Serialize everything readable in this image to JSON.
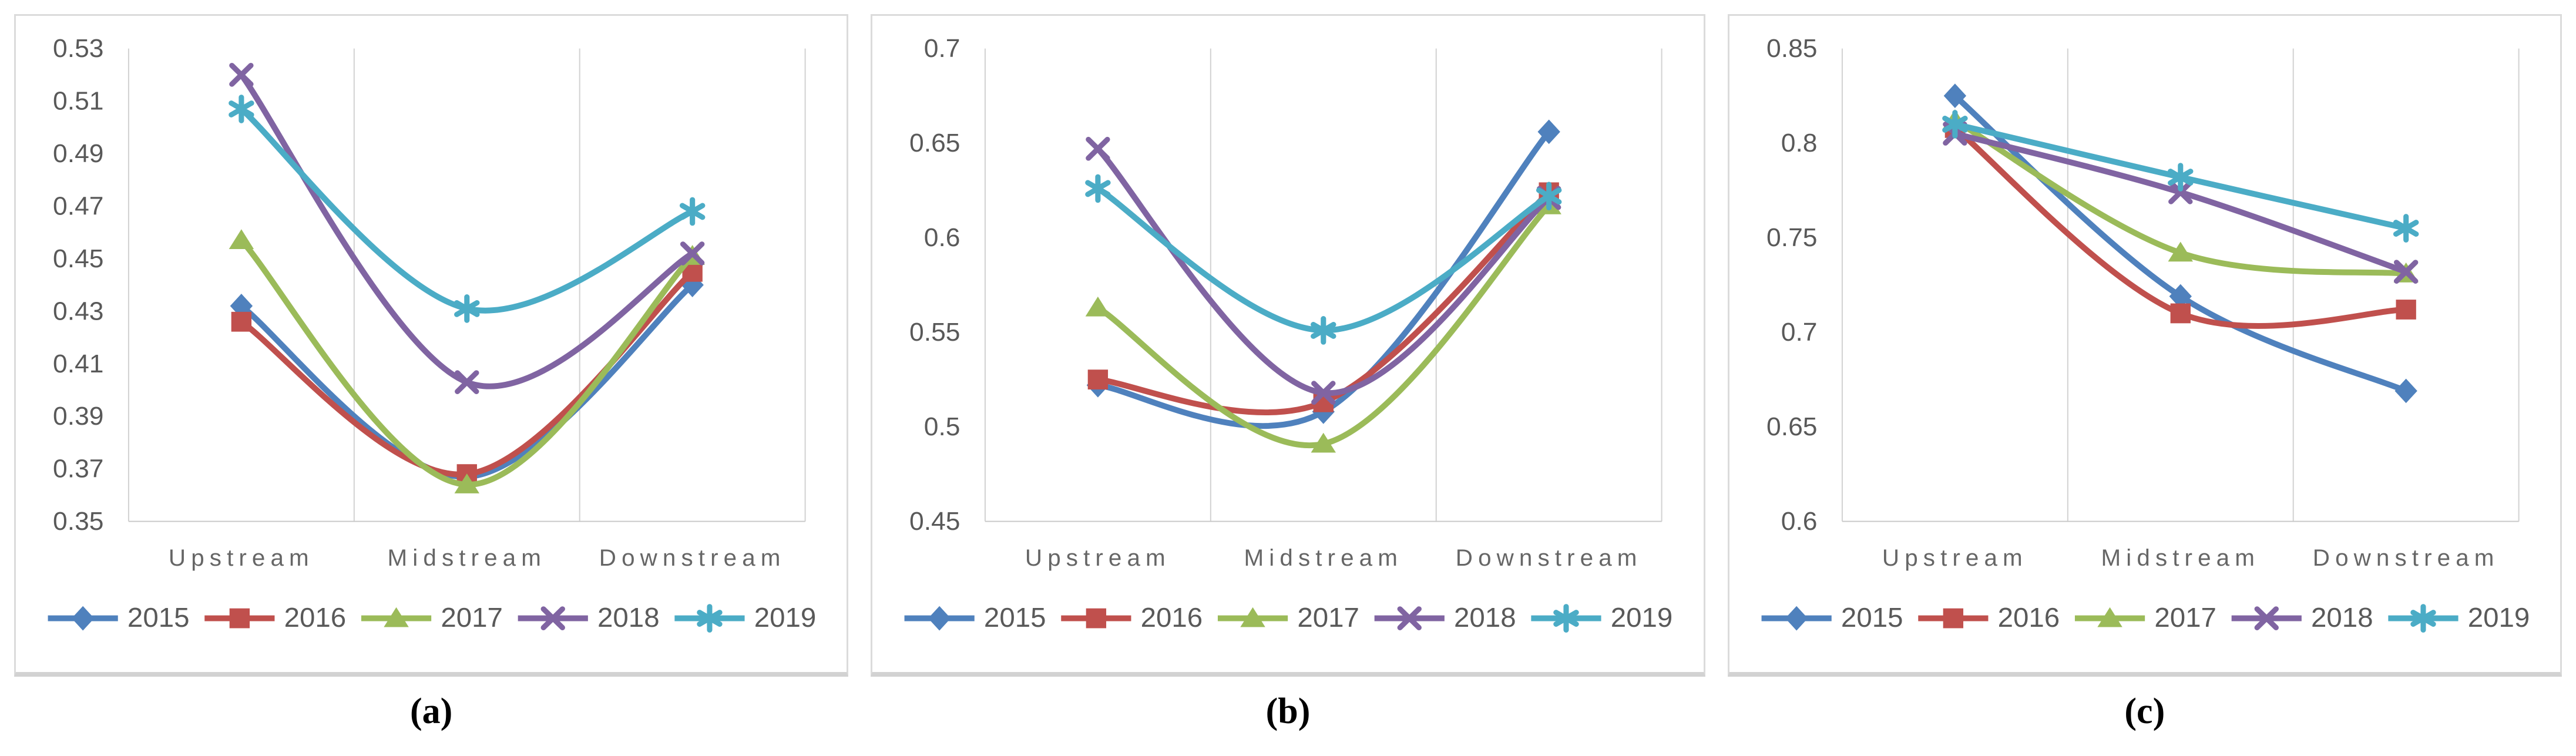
{
  "figure": {
    "panels": [
      {
        "caption": "(a)"
      },
      {
        "caption": "(b)"
      },
      {
        "caption": "(c)"
      }
    ]
  },
  "style": {
    "grid_color": "#d2d2d2",
    "axis_color": "#c9c9c9",
    "tick_text_color": "#595959",
    "category_text_color": "#666666",
    "legend_text_color": "#595959",
    "panel_border_color": "#dbdbdb",
    "background_color": "#ffffff"
  },
  "chart_data": [
    {
      "type": "line",
      "panel": "a",
      "title": "",
      "xlabel": "",
      "ylabel": "",
      "smooth": true,
      "grid": "vertical",
      "legend_position": "bottom",
      "categories": [
        "Upstream",
        "Midstream",
        "Downstream"
      ],
      "ylim": [
        0.35,
        0.53
      ],
      "ytick_step": 0.02,
      "yticks": [
        "0.53",
        "0.51",
        "0.49",
        "0.47",
        "0.45",
        "0.43",
        "0.41",
        "0.39",
        "0.37",
        "0.35"
      ],
      "series": [
        {
          "name": "2015",
          "color": "#4F81BD",
          "marker": "diamond",
          "values": [
            0.432,
            0.367,
            0.44
          ]
        },
        {
          "name": "2016",
          "color": "#C0504D",
          "marker": "square",
          "values": [
            0.426,
            0.368,
            0.445
          ]
        },
        {
          "name": "2017",
          "color": "#9BBB59",
          "marker": "triangle",
          "values": [
            0.457,
            0.364,
            0.451
          ]
        },
        {
          "name": "2018",
          "color": "#8064A2",
          "marker": "x",
          "values": [
            0.52,
            0.403,
            0.452
          ]
        },
        {
          "name": "2019",
          "color": "#4BACC6",
          "marker": "asterisk",
          "values": [
            0.507,
            0.431,
            0.468
          ]
        }
      ]
    },
    {
      "type": "line",
      "panel": "b",
      "title": "",
      "xlabel": "",
      "ylabel": "",
      "smooth": true,
      "grid": "vertical",
      "legend_position": "bottom",
      "categories": [
        "Upstream",
        "Midstream",
        "Downstream"
      ],
      "ylim": [
        0.45,
        0.7
      ],
      "ytick_step": 0.05,
      "yticks": [
        "0.7",
        "0.65",
        "0.6",
        "0.55",
        "0.5",
        "0.45"
      ],
      "series": [
        {
          "name": "2015",
          "color": "#4F81BD",
          "marker": "diamond",
          "values": [
            0.522,
            0.508,
            0.656
          ]
        },
        {
          "name": "2016",
          "color": "#C0504D",
          "marker": "square",
          "values": [
            0.525,
            0.513,
            0.624
          ]
        },
        {
          "name": "2017",
          "color": "#9BBB59",
          "marker": "triangle",
          "values": [
            0.563,
            0.491,
            0.617
          ]
        },
        {
          "name": "2018",
          "color": "#8064A2",
          "marker": "x",
          "values": [
            0.647,
            0.518,
            0.621
          ]
        },
        {
          "name": "2019",
          "color": "#4BACC6",
          "marker": "asterisk",
          "values": [
            0.626,
            0.551,
            0.622
          ]
        }
      ]
    },
    {
      "type": "line",
      "panel": "c",
      "title": "",
      "xlabel": "",
      "ylabel": "",
      "smooth": true,
      "grid": "vertical",
      "legend_position": "bottom",
      "categories": [
        "Upstream",
        "Midstream",
        "Downstream"
      ],
      "ylim": [
        0.6,
        0.85
      ],
      "ytick_step": 0.05,
      "yticks": [
        "0.85",
        "0.8",
        "0.75",
        "0.7",
        "0.65",
        "0.6"
      ],
      "series": [
        {
          "name": "2015",
          "color": "#4F81BD",
          "marker": "diamond",
          "values": [
            0.825,
            0.719,
            0.669
          ]
        },
        {
          "name": "2016",
          "color": "#C0504D",
          "marker": "square",
          "values": [
            0.808,
            0.71,
            0.712
          ]
        },
        {
          "name": "2017",
          "color": "#9BBB59",
          "marker": "triangle",
          "values": [
            0.812,
            0.742,
            0.731
          ]
        },
        {
          "name": "2018",
          "color": "#8064A2",
          "marker": "x",
          "values": [
            0.805,
            0.774,
            0.732
          ]
        },
        {
          "name": "2019",
          "color": "#4BACC6",
          "marker": "asterisk",
          "values": [
            0.81,
            0.782,
            0.755
          ]
        }
      ]
    }
  ]
}
